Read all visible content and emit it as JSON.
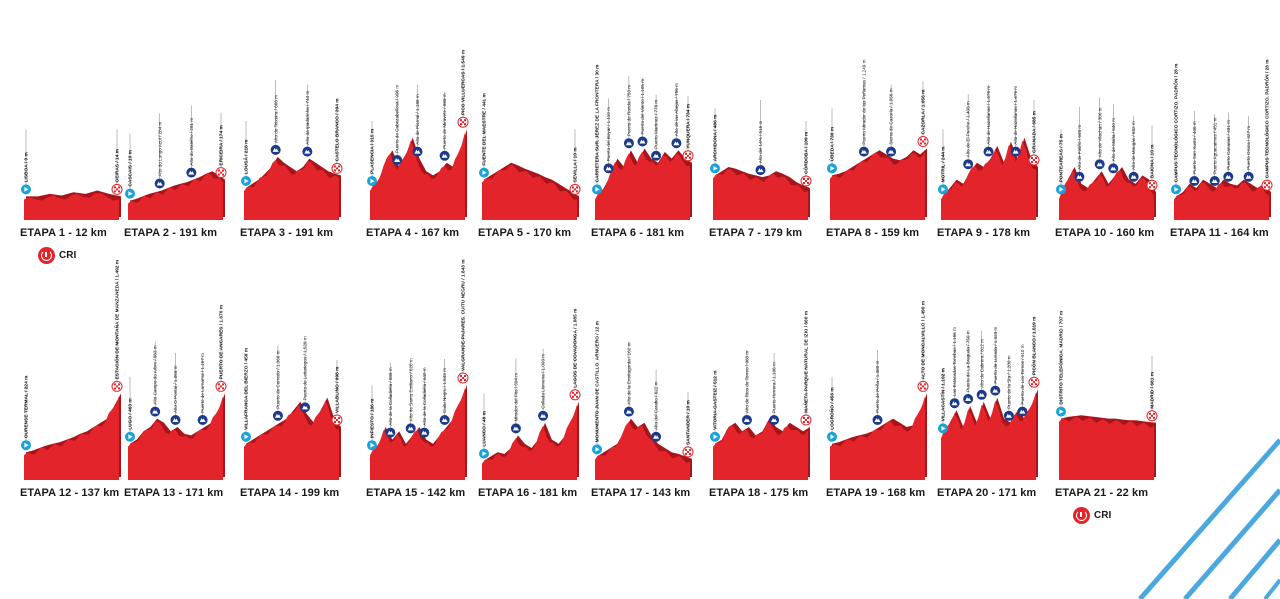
{
  "colors": {
    "profile": "#e4242b",
    "profile_dark": "#a8141a",
    "climb": "#1b3a8c",
    "start": "#1aa3d9",
    "deco": "#4aa8df"
  },
  "cri_label": "CRI",
  "stages": [
    {
      "label": "ETAPA 1 - 12 km",
      "cri": true,
      "start": "LISBOA / 0 m",
      "finish": "OEIRAS / 14 m",
      "climbs": [],
      "profile": [
        0.15,
        0.15,
        0.18,
        0.16,
        0.2,
        0.18,
        0.22,
        0.18,
        0.15
      ]
    },
    {
      "label": "ETAPA 2 - 191 km",
      "cri": false,
      "start": "CASCAIS / 10 m",
      "finish": "ERICEIRA / 174 m",
      "climbs": [
        "Alto do Longo Azul / 284 m",
        "Alto do Batelho / 281 m"
      ],
      "profile": [
        0.1,
        0.12,
        0.15,
        0.18,
        0.2,
        0.22,
        0.25,
        0.28,
        0.3,
        0.32,
        0.35,
        0.38,
        0.42,
        0.45,
        0.4,
        0.35
      ]
    },
    {
      "label": "ETAPA 3 - 191 km",
      "cri": false,
      "start": "LOUSÃ / 218 m",
      "finish": "CASTELO BRANCO / 394 m",
      "climbs": [
        "Alto de Teixeira / 666 m",
        "Alto da Ipadarinha / 744 m"
      ],
      "profile": [
        0.25,
        0.3,
        0.35,
        0.42,
        0.5,
        0.62,
        0.55,
        0.5,
        0.45,
        0.5,
        0.6,
        0.55,
        0.5,
        0.45,
        0.42,
        0.4
      ]
    },
    {
      "label": "ETAPA 4 - 167 km",
      "cri": false,
      "start": "PLASENCIA / 315 m",
      "finish": "PICO VILLUERCAS / 1.549 m",
      "climbs": [
        "Puerto de Cabezabellosa / 996 m",
        "Alto de Piornal / 1.188 m",
        "Puerto de Miravete / 688 m"
      ],
      "profile": [
        0.25,
        0.35,
        0.55,
        0.7,
        0.5,
        0.65,
        0.85,
        0.6,
        0.45,
        0.4,
        0.45,
        0.55,
        0.5,
        0.7,
        0.95
      ]
    },
    {
      "label": "ETAPA 5 - 170 km",
      "cri": false,
      "start": "FUENTE DEL MAESTRE / 441 m",
      "finish": "SEVILLA / 10 m",
      "climbs": [],
      "profile": [
        0.35,
        0.4,
        0.45,
        0.5,
        0.55,
        0.52,
        0.48,
        0.45,
        0.42,
        0.38,
        0.35,
        0.3,
        0.25,
        0.2,
        0.15
      ]
    },
    {
      "label": "ETAPA 6 - 181 km",
      "cri": false,
      "start": "CARRETERA SUR. JEREZ DE LA FRONTERA / 30 m",
      "finish": "YUNQUERA / 734 m",
      "climbs": [
        "Puerto del Boyar / 1.110 m",
        "Puerto de Ronda / 750 m",
        "Puerto del Viento / 1.105 m",
        "Puerto Martinez / 778 m",
        "Alto de las Abejas / 756 m"
      ],
      "profile": [
        0.15,
        0.25,
        0.4,
        0.6,
        0.5,
        0.7,
        0.55,
        0.72,
        0.6,
        0.55,
        0.68,
        0.6,
        0.7,
        0.6,
        0.55
      ]
    },
    {
      "label": "ETAPA 7 - 179 km",
      "cri": false,
      "start": "ARCHIDONA / 486 m",
      "finish": "CÓRDOBA / 109 m",
      "climbs": [
        "Alto del 14% / 516 m"
      ],
      "profile": [
        0.4,
        0.45,
        0.5,
        0.48,
        0.45,
        0.42,
        0.4,
        0.38,
        0.4,
        0.45,
        0.42,
        0.38,
        0.32,
        0.28,
        0.25
      ]
    },
    {
      "label": "ETAPA 8 - 159 km",
      "cri": false,
      "start": "ÚBEDA / 730 m",
      "finish": "CAZORLA / 1.056 m",
      "climbs": [
        "Puerto Mirador de las Peñamas / 1.249 m",
        "Sierra de Cazorla / 1.056 m"
      ],
      "profile": [
        0.4,
        0.42,
        0.45,
        0.5,
        0.55,
        0.6,
        0.65,
        0.7,
        0.65,
        0.6,
        0.58,
        0.62,
        0.7,
        0.65,
        0.72
      ]
    },
    {
      "label": "ETAPA 9 - 178 km",
      "cri": false,
      "start": "MOTRIL / 244 m",
      "finish": "GRANADA / 685 m",
      "climbs": [
        "Alto de El Purche / 1.408 m",
        "Alto de Hazallanas / 1.676 m",
        "Alto de Hazallanas / 1.676 m"
      ],
      "profile": [
        0.15,
        0.25,
        0.35,
        0.3,
        0.45,
        0.55,
        0.5,
        0.6,
        0.75,
        0.55,
        0.8,
        0.6,
        0.85,
        0.6,
        0.5
      ]
    },
    {
      "label": "ETAPA 10 - 160 km",
      "cri": false,
      "start": "PONTEAREAS / 75 m",
      "finish": "BAIONA / 10 m",
      "climbs": [
        "Alto de Fotiño / 608 m",
        "Alto de Vilachán / 386 m",
        "Alto de Malta / 640 m",
        "Alto de Mougás / 632 m"
      ],
      "profile": [
        0.15,
        0.35,
        0.5,
        0.3,
        0.25,
        0.35,
        0.45,
        0.3,
        0.4,
        0.5,
        0.35,
        0.3,
        0.4,
        0.35,
        0.2
      ]
    },
    {
      "label": "ETAPA 11 - 164 km",
      "cri": false,
      "start": "CAMPUS TECNOLÓGICO CORTIZO. PADRÓN / 28 m",
      "finish": "CAMPUS TECNOLÓGICO CORTIZO. PADRÓN / 28 m",
      "climbs": [
        "Puerto San Xusto / 446 m",
        "Puerto Aguacaimes / 451 m",
        "Puerto Canarias / 431 m",
        "Puerto Oroza / 327 m"
      ],
      "profile": [
        0.15,
        0.2,
        0.3,
        0.25,
        0.35,
        0.3,
        0.25,
        0.35,
        0.3,
        0.28,
        0.35,
        0.3,
        0.25,
        0.3,
        0.2
      ]
    },
    {
      "label": "ETAPA 12 - 137 km",
      "cri": false,
      "start": "OURENSE TERMAL / 224 m",
      "finish": "ESTACIÓN DE MONTAÑA DE MANZANEDA / 1.492 m",
      "climbs": [],
      "profile": [
        0.2,
        0.22,
        0.25,
        0.28,
        0.3,
        0.32,
        0.35,
        0.38,
        0.42,
        0.45,
        0.5,
        0.55,
        0.6,
        0.75,
        0.9
      ]
    },
    {
      "label": "ETAPA 13 - 171 km",
      "cri": false,
      "start": "LUGO / 463 m",
      "finish": "PUERTO DE ANCARES / 1.670 m",
      "climbs": [
        "Alto Campo do Arbre / 883 m",
        "Alto O Pontal / 1.068 m",
        "Puerto de Lornarna / 1.167 m"
      ],
      "profile": [
        0.3,
        0.35,
        0.45,
        0.5,
        0.6,
        0.55,
        0.45,
        0.5,
        0.42,
        0.4,
        0.45,
        0.5,
        0.55,
        0.7,
        0.9
      ]
    },
    {
      "label": "ETAPA 14 - 199 km",
      "cri": false,
      "start": "VILLAFRANCA DEL BIERZO / 459 m",
      "finish": "VILLABLINO / 998 m",
      "climbs": [
        "Puerto de Cerredo / 1.366 m",
        "Puerto de Leitariegos / 1.528 m"
      ],
      "profile": [
        0.3,
        0.35,
        0.4,
        0.45,
        0.5,
        0.55,
        0.6,
        0.7,
        0.8,
        0.65,
        0.55,
        0.7,
        0.85,
        0.6,
        0.5
      ]
    },
    {
      "label": "ETAPA 15 - 142 km",
      "cri": false,
      "start": "INFIESTO / 186 m",
      "finish": "VALGRANDE-PAJARES. CUITU NEGRU / 1.843 m",
      "climbs": [
        "Alto de la Colladiella / 888 m",
        "Alto de Santo Emiliano / 626 m",
        "Alto de la Colladiella / 640 m",
        "Cuitu Negru / 1.843 m"
      ],
      "profile": [
        0.2,
        0.3,
        0.5,
        0.35,
        0.45,
        0.3,
        0.4,
        0.5,
        0.35,
        0.3,
        0.4,
        0.5,
        0.6,
        0.8,
        1.0
      ]
    },
    {
      "label": "ETAPA 16 - 181 km",
      "cri": false,
      "start": "LUANCO / 48 m",
      "finish": "LAGOS DE COVADONGA / 1.085 m",
      "climbs": [
        "Mirador del Fito / 594 m",
        "Collada Llomena / 1.003 m"
      ],
      "profile": [
        0.1,
        0.15,
        0.2,
        0.18,
        0.25,
        0.4,
        0.3,
        0.25,
        0.35,
        0.55,
        0.35,
        0.3,
        0.4,
        0.6,
        0.8
      ]
    },
    {
      "label": "ETAPA 17 - 143 km",
      "cri": false,
      "start": "MONUMENTO JUAN DE CASTILLO. ARNUERO / 12 m",
      "finish": "SANTANDER / 10 m",
      "climbs": [
        "Alto de la Ermitagorda / 162 m",
        "Alto del Carabo / 622 m"
      ],
      "profile": [
        0.15,
        0.2,
        0.25,
        0.3,
        0.45,
        0.6,
        0.5,
        0.55,
        0.4,
        0.3,
        0.25,
        0.2,
        0.18,
        0.15,
        0.12
      ]
    },
    {
      "label": "ETAPA 18 - 175 km",
      "cri": false,
      "start": "VITORIA-GASTEIZ / 512 m",
      "finish": "MAÑETA-PARQUE NATURAL DE IZKI / 660 m",
      "climbs": [
        "Alto de Ríos de Torreo / 968 m",
        "Puerto Herrera / 1.106 m"
      ],
      "profile": [
        0.3,
        0.35,
        0.5,
        0.55,
        0.45,
        0.5,
        0.4,
        0.45,
        0.6,
        0.5,
        0.45,
        0.55,
        0.5,
        0.45,
        0.5
      ]
    },
    {
      "label": "ETAPA 19 - 168 km",
      "cri": false,
      "start": "LOGROÑO / 456 m",
      "finish": "ALTO DE MONCALVILLO / 1.490 m",
      "climbs": [
        "Puerto de Peña / 1.380 m"
      ],
      "profile": [
        0.3,
        0.32,
        0.35,
        0.38,
        0.4,
        0.42,
        0.45,
        0.5,
        0.55,
        0.6,
        0.55,
        0.5,
        0.52,
        0.7,
        0.9
      ]
    },
    {
      "label": "ETAPA 20 - 171 km",
      "cri": false,
      "start": "VILLACASTÍN / 1.102 m",
      "finish": "PICÓN BLANCO / 1.519 m",
      "climbs": [
        "Las Estacadas Tonebas / 1.156 m",
        "Puerto de La Braguda / 750 m",
        "Alto de Cabrera / 812 m",
        "Puerto de Lunada / 1.323 m",
        "Puerto de la Sía / 1.200 m",
        "Puerto de Los Tornos / 910 m"
      ],
      "profile": [
        0.4,
        0.55,
        0.7,
        0.5,
        0.75,
        0.55,
        0.8,
        0.6,
        0.85,
        0.6,
        0.55,
        0.7,
        0.6,
        0.75,
        0.95
      ]
    },
    {
      "label": "ETAPA 21 - 22 km",
      "cri": true,
      "start": "DISTRITO TELEFÓNICA. MADRID / 707 m",
      "finish": "MADRID / 681 m",
      "climbs": [],
      "profile": [
        0.6,
        0.62,
        0.63,
        0.64,
        0.63,
        0.62,
        0.61,
        0.6,
        0.6,
        0.59,
        0.58,
        0.58,
        0.57,
        0.56,
        0.55
      ]
    }
  ]
}
